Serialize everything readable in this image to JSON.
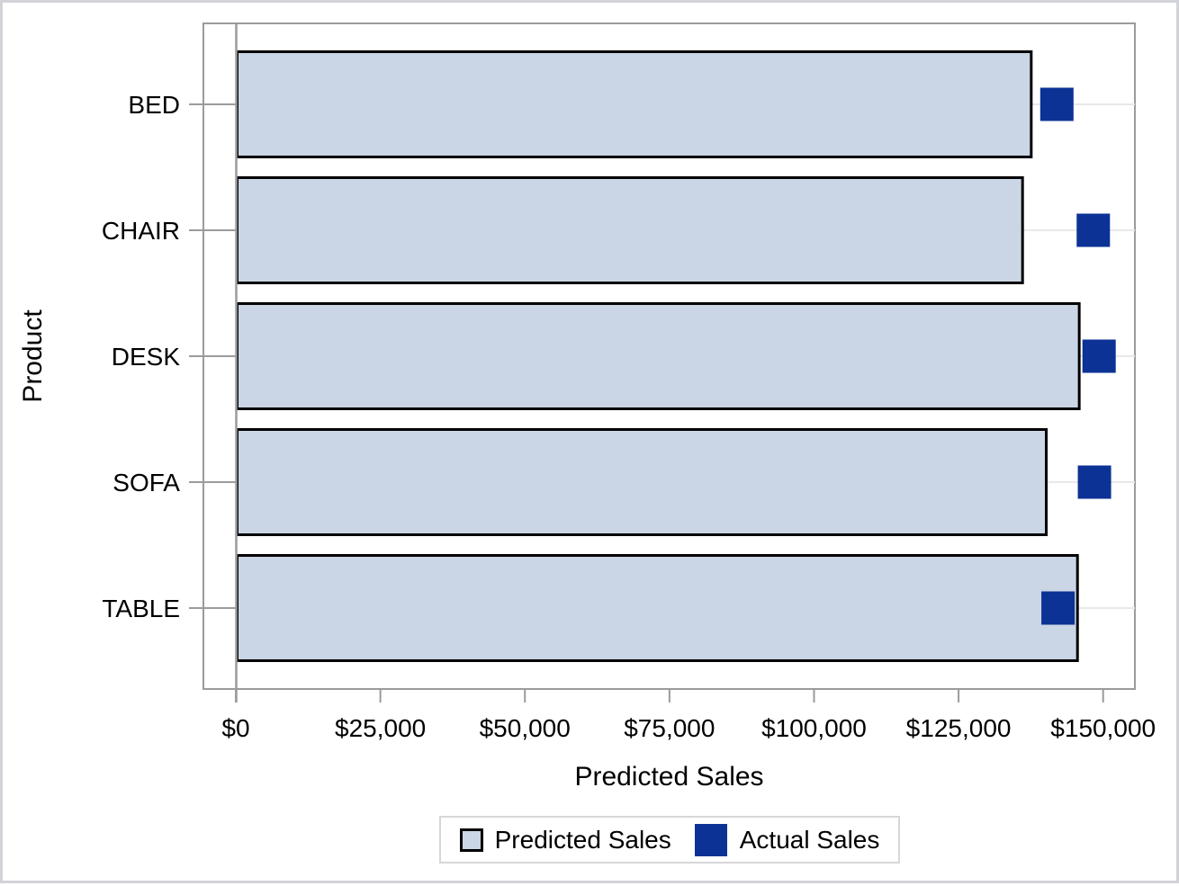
{
  "chart_data": {
    "type": "bar",
    "orientation": "horizontal",
    "categories": [
      "BED",
      "CHAIR",
      "DESK",
      "SOFA",
      "TABLE"
    ],
    "series": [
      {
        "name": "Predicted Sales",
        "plot_type": "bar",
        "values": [
          137800,
          136300,
          146100,
          140400,
          145800
        ]
      },
      {
        "name": "Actual Sales",
        "plot_type": "scatter",
        "marker": "square",
        "values": [
          142000,
          148300,
          149300,
          148500,
          142200
        ]
      }
    ],
    "title": "",
    "xlabel": "Predicted Sales",
    "ylabel": "Product",
    "xlim": [
      0,
      150000
    ],
    "xticks": [
      0,
      25000,
      50000,
      75000,
      100000,
      125000,
      150000
    ],
    "xtick_labels": [
      "$0",
      "$25,000",
      "$50,000",
      "$75,000",
      "$100,000",
      "$125,000",
      "$150,000"
    ],
    "grid": "horizontal-category-lines",
    "legend_position": "bottom-center"
  },
  "legend": {
    "items": [
      {
        "label": "Predicted Sales",
        "swatch": "outlined-light-square"
      },
      {
        "label": "Actual Sales",
        "swatch": "filled-navy-square"
      }
    ]
  },
  "colors": {
    "bar_fill": "#cad5e5",
    "bar_outline": "#000000",
    "marker": "#0b3294",
    "axis_line": "#9b9b9b",
    "gridline": "#e8e8e8",
    "figure_border": "#d1d3d8",
    "legend_border": "#d7d7d7",
    "text": "#000000"
  }
}
